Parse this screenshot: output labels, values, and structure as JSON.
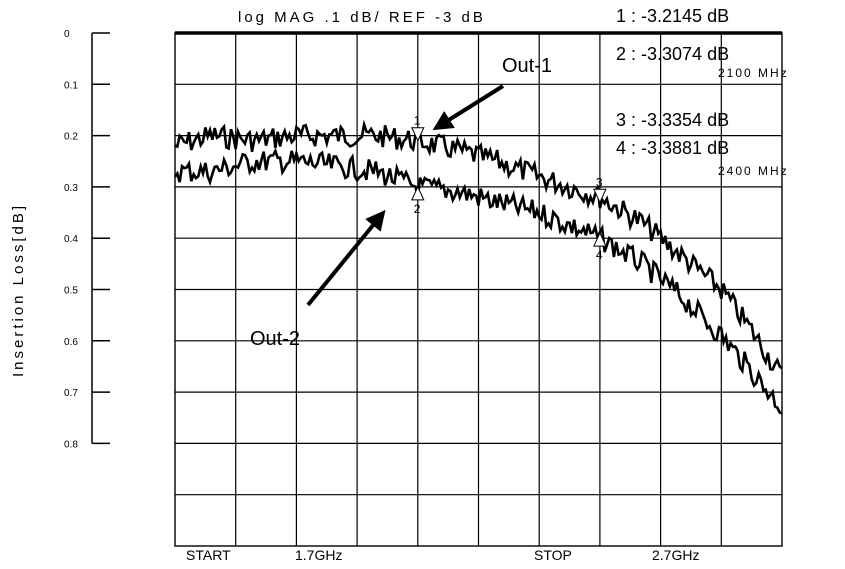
{
  "chart_data": {
    "type": "line",
    "title": "log MAG .1 dB/ REF -3 dB",
    "ylabel": "Insertion Loss[dB]",
    "y_ticks": [
      "0",
      "0.1",
      "0.2",
      "0.3",
      "0.4",
      "0.5",
      "0.6",
      "0.7",
      "0.8"
    ],
    "ylim": [
      0,
      0.8
    ],
    "xlim": [
      1.7,
      2.7
    ],
    "x_footer": {
      "start_label": "START",
      "start_value": "1.7GHz",
      "stop_label": "STOP",
      "stop_value": "2.7GHz"
    },
    "grid": true,
    "series": [
      {
        "name": "Out-1",
        "x": [
          1.7,
          1.76,
          1.83,
          1.9,
          1.97,
          2.03,
          2.1,
          2.17,
          2.23,
          2.3,
          2.4,
          2.47,
          2.53,
          2.6,
          2.65,
          2.7
        ],
        "y": [
          0.22,
          0.2,
          0.21,
          0.2,
          0.2,
          0.2,
          0.21,
          0.23,
          0.25,
          0.28,
          0.32,
          0.37,
          0.43,
          0.5,
          0.58,
          0.67
        ]
      },
      {
        "name": "Out-2",
        "x": [
          1.7,
          1.76,
          1.83,
          1.9,
          1.97,
          2.03,
          2.1,
          2.17,
          2.23,
          2.3,
          2.4,
          2.47,
          2.53,
          2.6,
          2.65,
          2.7
        ],
        "y": [
          0.27,
          0.27,
          0.25,
          0.25,
          0.26,
          0.27,
          0.3,
          0.31,
          0.33,
          0.35,
          0.4,
          0.45,
          0.51,
          0.59,
          0.66,
          0.73
        ]
      }
    ],
    "markers": [
      {
        "id": "1",
        "label": "1 : -3.2145 dB",
        "series": "Out-1",
        "freq_text": "",
        "x": 2.1,
        "y": 0.21,
        "symbol": "down"
      },
      {
        "id": "2",
        "label": "2 : -3.3074 dB",
        "series": "Out-2",
        "freq_text": "2100 MHz",
        "x": 2.1,
        "y": 0.3,
        "symbol": "up"
      },
      {
        "id": "3",
        "label": "3 : -3.3354 dB",
        "series": "Out-1",
        "freq_text": "",
        "x": 2.4,
        "y": 0.33,
        "symbol": "down"
      },
      {
        "id": "4",
        "label": "4 : -3.3881 dB",
        "series": "Out-2",
        "freq_text": "2400 MHz",
        "x": 2.4,
        "y": 0.39,
        "symbol": "up"
      }
    ],
    "annotations": [
      {
        "text": "Out-1",
        "series": "Out-1"
      },
      {
        "text": "Out-2",
        "series": "Out-2"
      }
    ]
  }
}
